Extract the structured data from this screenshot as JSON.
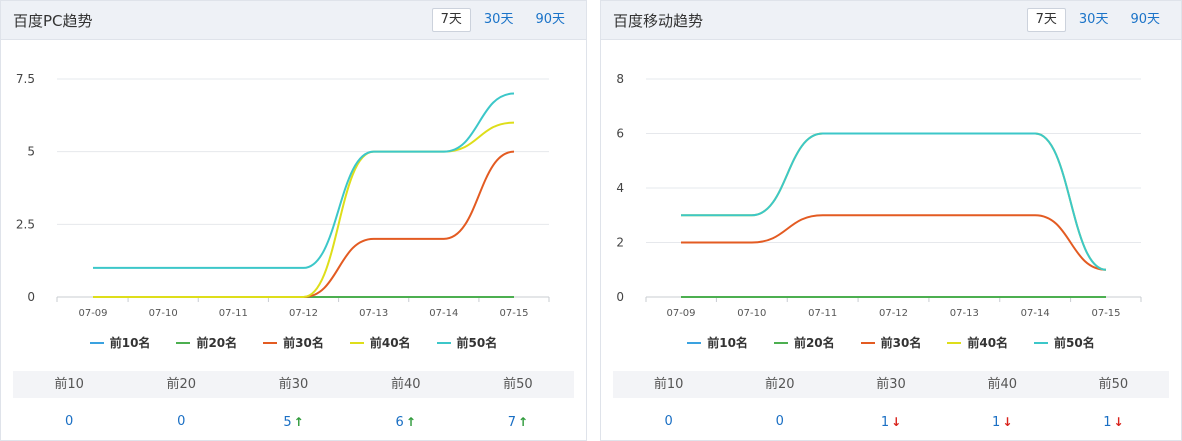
{
  "colors": {
    "top10": "#3aa2e0",
    "top20": "#4caf50",
    "top30": "#e35b22",
    "top40": "#dede1a",
    "top50": "#3cc7c9"
  },
  "panels": [
    {
      "title": "百度PC趋势",
      "tabs": [
        {
          "label": "7天",
          "active": true
        },
        {
          "label": "30天",
          "active": false
        },
        {
          "label": "90天",
          "active": false
        }
      ],
      "stats_headers": [
        "前10",
        "前20",
        "前30",
        "前40",
        "前50"
      ],
      "stats_values": [
        {
          "value": "0",
          "trend": "none"
        },
        {
          "value": "0",
          "trend": "none"
        },
        {
          "value": "5",
          "trend": "up"
        },
        {
          "value": "6",
          "trend": "up"
        },
        {
          "value": "7",
          "trend": "up"
        }
      ]
    },
    {
      "title": "百度移动趋势",
      "tabs": [
        {
          "label": "7天",
          "active": true
        },
        {
          "label": "30天",
          "active": false
        },
        {
          "label": "90天",
          "active": false
        }
      ],
      "stats_headers": [
        "前10",
        "前20",
        "前30",
        "前40",
        "前50"
      ],
      "stats_values": [
        {
          "value": "0",
          "trend": "none"
        },
        {
          "value": "0",
          "trend": "none"
        },
        {
          "value": "1",
          "trend": "down"
        },
        {
          "value": "1",
          "trend": "down"
        },
        {
          "value": "1",
          "trend": "down"
        }
      ]
    }
  ],
  "chart_data": [
    {
      "type": "line",
      "title": "百度PC趋势",
      "categories": [
        "07-09",
        "07-10",
        "07-11",
        "07-12",
        "07-13",
        "07-14",
        "07-15"
      ],
      "ylim": [
        0,
        7.5
      ],
      "yticks": [
        "0",
        "2.5",
        "5",
        "7.5"
      ],
      "ytick_values": [
        0,
        2.5,
        5,
        7.5
      ],
      "grid": true,
      "legend": "bottom",
      "series": [
        {
          "name": "前10名",
          "color_key": "top10",
          "values": [
            0,
            0,
            0,
            0,
            0,
            0,
            0
          ]
        },
        {
          "name": "前20名",
          "color_key": "top20",
          "values": [
            0,
            0,
            0,
            0,
            0,
            0,
            0
          ]
        },
        {
          "name": "前30名",
          "color_key": "top30",
          "values": [
            0,
            0,
            0,
            0,
            2,
            2,
            5
          ]
        },
        {
          "name": "前40名",
          "color_key": "top40",
          "values": [
            0,
            0,
            0,
            0,
            5,
            5,
            6
          ]
        },
        {
          "name": "前50名",
          "color_key": "top50",
          "values": [
            1,
            1,
            1,
            1,
            5,
            5,
            7
          ]
        }
      ]
    },
    {
      "type": "line",
      "title": "百度移动趋势",
      "categories": [
        "07-09",
        "07-10",
        "07-11",
        "07-12",
        "07-13",
        "07-14",
        "07-15"
      ],
      "ylim": [
        0,
        8
      ],
      "yticks": [
        "0",
        "2",
        "4",
        "6",
        "8"
      ],
      "ytick_values": [
        0,
        2,
        4,
        6,
        8
      ],
      "grid": true,
      "legend": "bottom",
      "series": [
        {
          "name": "前10名",
          "color_key": "top10",
          "values": [
            0,
            0,
            0,
            0,
            0,
            0,
            0
          ]
        },
        {
          "name": "前20名",
          "color_key": "top20",
          "values": [
            0,
            0,
            0,
            0,
            0,
            0,
            0
          ]
        },
        {
          "name": "前30名",
          "color_key": "top30",
          "values": [
            2,
            2,
            3,
            3,
            3,
            3,
            1
          ]
        },
        {
          "name": "前40名",
          "color_key": "top40",
          "values": [
            3,
            3,
            6,
            6,
            6,
            6,
            1
          ]
        },
        {
          "name": "前50名",
          "color_key": "top50",
          "values": [
            3,
            3,
            6,
            6,
            6,
            6,
            1
          ]
        }
      ]
    }
  ]
}
